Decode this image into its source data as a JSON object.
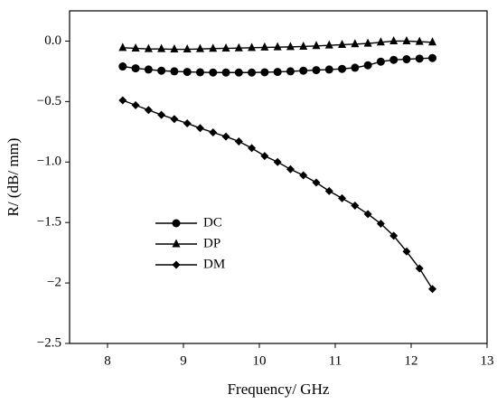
{
  "chart_data": {
    "type": "line",
    "xlabel": "Frequency/ GHz",
    "ylabel": "R/ (dB/ mm)",
    "x": [
      8.2,
      8.37,
      8.54,
      8.71,
      8.88,
      9.05,
      9.22,
      9.39,
      9.56,
      9.73,
      9.9,
      10.07,
      10.24,
      10.41,
      10.58,
      10.75,
      10.92,
      11.09,
      11.26,
      11.43,
      11.6,
      11.77,
      11.94,
      12.11,
      12.28
    ],
    "series": [
      {
        "name": "DC",
        "color": "#000000",
        "marker": "circle",
        "values": [
          -0.21,
          -0.225,
          -0.235,
          -0.245,
          -0.25,
          -0.255,
          -0.258,
          -0.26,
          -0.26,
          -0.26,
          -0.26,
          -0.258,
          -0.255,
          -0.25,
          -0.245,
          -0.24,
          -0.235,
          -0.23,
          -0.22,
          -0.2,
          -0.17,
          -0.155,
          -0.15,
          -0.145,
          -0.14
        ]
      },
      {
        "name": "DP",
        "color": "#000000",
        "marker": "triangle",
        "values": [
          -0.055,
          -0.06,
          -0.065,
          -0.065,
          -0.068,
          -0.068,
          -0.065,
          -0.062,
          -0.06,
          -0.058,
          -0.055,
          -0.052,
          -0.05,
          -0.048,
          -0.045,
          -0.04,
          -0.035,
          -0.03,
          -0.025,
          -0.02,
          -0.01,
          0,
          0,
          -0.005,
          -0.01
        ]
      },
      {
        "name": "DM",
        "color": "#000000",
        "marker": "diamond",
        "values": [
          -0.49,
          -0.53,
          -0.57,
          -0.61,
          -0.645,
          -0.68,
          -0.72,
          -0.755,
          -0.79,
          -0.83,
          -0.885,
          -0.95,
          -1.0,
          -1.06,
          -1.11,
          -1.17,
          -1.24,
          -1.3,
          -1.36,
          -1.43,
          -1.51,
          -1.61,
          -1.74,
          -1.88,
          -2.05
        ]
      }
    ],
    "xlim": [
      7.5,
      13
    ],
    "ylim": [
      -2.5,
      0.25
    ],
    "xticks": [
      8,
      9,
      10,
      11,
      12,
      13
    ],
    "yticks": [
      {
        "value": 0,
        "label": "0.0"
      },
      {
        "value": -0.5,
        "label": "−0.5"
      },
      {
        "value": -1,
        "label": "−1.0"
      },
      {
        "value": -1.5,
        "label": "−1.5"
      },
      {
        "value": -2,
        "label": "−2"
      },
      {
        "value": -2.5,
        "label": "−2.5"
      }
    ],
    "legend": "lower-left"
  }
}
